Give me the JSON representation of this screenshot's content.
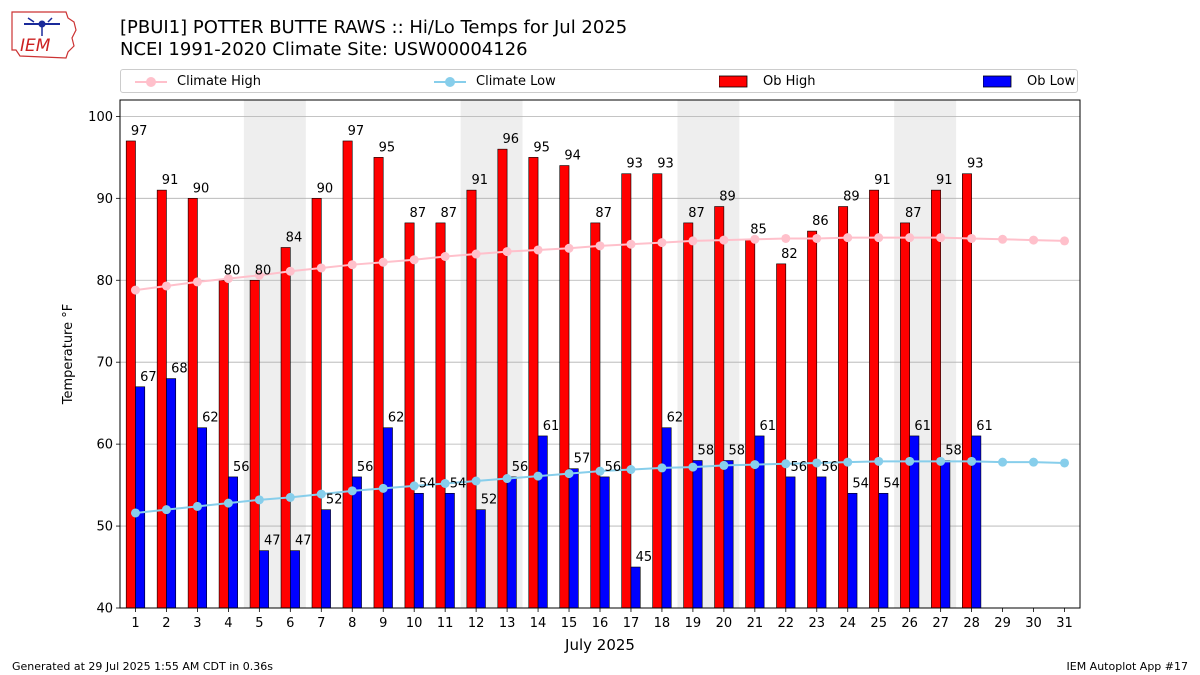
{
  "header": {
    "title_line1": "[PBUI1] POTTER BUTTE RAWS :: Hi/Lo Temps for Jul 2025",
    "title_line2": "NCEI 1991-2020 Climate Site: USW00004126",
    "logo_text": "IEM"
  },
  "footer": {
    "left": "Generated at 29 Jul 2025 1:55 AM CDT in 0.36s",
    "right": "IEM Autoplot App #17"
  },
  "legend": [
    {
      "label": "Climate High",
      "kind": "line",
      "color": "#ffc0cb"
    },
    {
      "label": "Climate Low",
      "kind": "line",
      "color": "#87ceeb"
    },
    {
      "label": "Ob High",
      "kind": "bar",
      "color": "#ff0000"
    },
    {
      "label": "Ob Low",
      "kind": "bar",
      "color": "#0000ff"
    }
  ],
  "chart_data": {
    "type": "bar",
    "xlabel": "July 2025",
    "ylabel": "Temperature °F",
    "ylim": [
      40,
      102
    ],
    "yticks": [
      40,
      50,
      60,
      70,
      80,
      90,
      100
    ],
    "grid": "horizontal",
    "legend_position": "top",
    "categories": [
      "1",
      "2",
      "3",
      "4",
      "5",
      "6",
      "7",
      "8",
      "9",
      "10",
      "11",
      "12",
      "13",
      "14",
      "15",
      "16",
      "17",
      "18",
      "19",
      "20",
      "21",
      "22",
      "23",
      "24",
      "25",
      "26",
      "27",
      "28",
      "29",
      "30",
      "31"
    ],
    "weekend_shading_days": [
      [
        5,
        6
      ],
      [
        12,
        13
      ],
      [
        19,
        20
      ],
      [
        26,
        27
      ]
    ],
    "series": [
      {
        "name": "Ob High",
        "type": "bar",
        "color": "#ff0000",
        "values": [
          97,
          91,
          90,
          80,
          80,
          84,
          90,
          97,
          95,
          87,
          87,
          91,
          96,
          95,
          94,
          87,
          93,
          93,
          87,
          89,
          85,
          82,
          86,
          89,
          91,
          87,
          91,
          93,
          null,
          null,
          null
        ]
      },
      {
        "name": "Ob Low",
        "type": "bar",
        "color": "#0000ff",
        "values": [
          67,
          68,
          62,
          56,
          47,
          47,
          52,
          56,
          62,
          54,
          54,
          52,
          56,
          61,
          57,
          56,
          45,
          62,
          58,
          58,
          61,
          56,
          56,
          54,
          54,
          61,
          58,
          61,
          null,
          null,
          null
        ]
      },
      {
        "name": "Climate High",
        "type": "line",
        "color": "#ffc0cb",
        "values": [
          78.8,
          79.3,
          79.8,
          80.2,
          80.6,
          81.1,
          81.5,
          81.9,
          82.2,
          82.5,
          82.9,
          83.2,
          83.5,
          83.7,
          83.9,
          84.2,
          84.4,
          84.6,
          84.8,
          84.9,
          85.0,
          85.1,
          85.1,
          85.2,
          85.2,
          85.2,
          85.2,
          85.1,
          85.0,
          84.9,
          84.8
        ]
      },
      {
        "name": "Climate Low",
        "type": "line",
        "color": "#87ceeb",
        "values": [
          51.6,
          52.0,
          52.4,
          52.8,
          53.2,
          53.5,
          53.9,
          54.3,
          54.6,
          54.9,
          55.2,
          55.5,
          55.8,
          56.1,
          56.4,
          56.7,
          56.9,
          57.1,
          57.2,
          57.4,
          57.5,
          57.6,
          57.7,
          57.8,
          57.9,
          57.9,
          57.9,
          57.9,
          57.8,
          57.8,
          57.7
        ]
      }
    ]
  }
}
